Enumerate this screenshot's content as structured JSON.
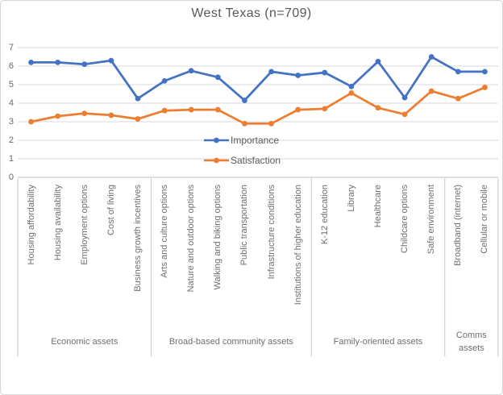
{
  "title": "West Texas (n=709)",
  "chart_data": {
    "type": "line",
    "title": "West Texas (n=709)",
    "categories": [
      "Housing affordability",
      "Housing availability",
      "Employment options",
      "Cost of living",
      "Business growth incentives",
      "Arts and culture options",
      "Nature and outdoor options",
      "Walking and biking options",
      "Public transportation",
      "Infrastructure conditions",
      "Institutions of higher education",
      "K-12 education",
      "Library",
      "Healthcare",
      "Childcare options",
      "Safe environment",
      "Broadband (internet)",
      "Cellular or mobile"
    ],
    "groups": [
      {
        "label": "Economic assets",
        "count": 5
      },
      {
        "label": "Broad-based community assets",
        "count": 6
      },
      {
        "label": "Family-oriented assets",
        "count": 5
      },
      {
        "label": "Comms assets",
        "count": 2
      }
    ],
    "series": [
      {
        "name": "Importance",
        "color": "#4472C4",
        "values": [
          6.2,
          6.2,
          6.1,
          6.3,
          4.25,
          5.2,
          5.75,
          5.4,
          4.15,
          5.7,
          5.5,
          5.65,
          4.9,
          6.25,
          4.3,
          6.5,
          5.7,
          5.7
        ]
      },
      {
        "name": "Satisfaction",
        "color": "#ED7D31",
        "values": [
          3.0,
          3.3,
          3.45,
          3.35,
          3.15,
          3.6,
          3.65,
          3.65,
          2.9,
          2.9,
          3.65,
          3.7,
          4.55,
          3.75,
          3.4,
          4.65,
          4.25,
          4.85
        ]
      }
    ],
    "yticks": [
      0,
      1,
      2,
      3,
      4,
      5,
      6,
      7
    ],
    "ylim": [
      0,
      7
    ],
    "grid": true,
    "legend_position": "inside-center"
  },
  "colors": {
    "gridline": "#d9d9d9",
    "axis_line": "#bfbfbf",
    "separator_line": "#c6c6c6",
    "text": "#6f6f6f",
    "title_text": "#595959"
  }
}
